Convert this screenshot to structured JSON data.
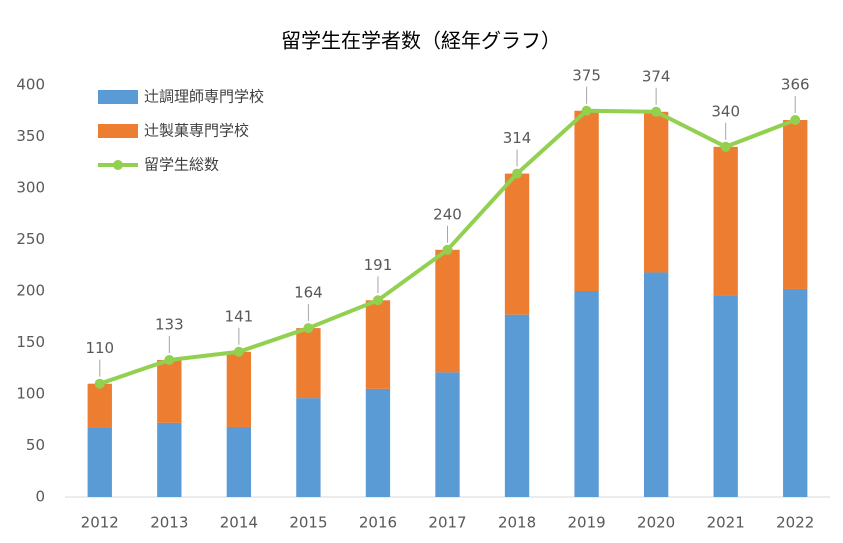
{
  "chart_data": {
    "type": "stacked-bar-line",
    "title": "留学生在学者数（経年グラフ）",
    "categories": [
      "2012",
      "2013",
      "2014",
      "2015",
      "2016",
      "2017",
      "2018",
      "2019",
      "2020",
      "2021",
      "2022"
    ],
    "series": [
      {
        "name": "辻調理師専門学校",
        "type": "bar",
        "color": "#5b9bd5",
        "values": [
          67,
          72,
          68,
          96,
          105,
          121,
          177,
          200,
          218,
          196,
          202
        ]
      },
      {
        "name": "辻製菓専門学校",
        "type": "bar",
        "color": "#ed7d31",
        "values": [
          43,
          61,
          73,
          68,
          86,
          119,
          137,
          175,
          156,
          144,
          164
        ]
      },
      {
        "name": "留学生総数",
        "type": "line",
        "color": "#92d050",
        "values": [
          110,
          133,
          141,
          164,
          191,
          240,
          314,
          375,
          374,
          340,
          366
        ]
      }
    ],
    "ylim": [
      0,
      400
    ],
    "yticks": [
      0,
      50,
      100,
      150,
      200,
      250,
      300,
      350,
      400
    ],
    "grid": false,
    "legend": "top-left"
  }
}
